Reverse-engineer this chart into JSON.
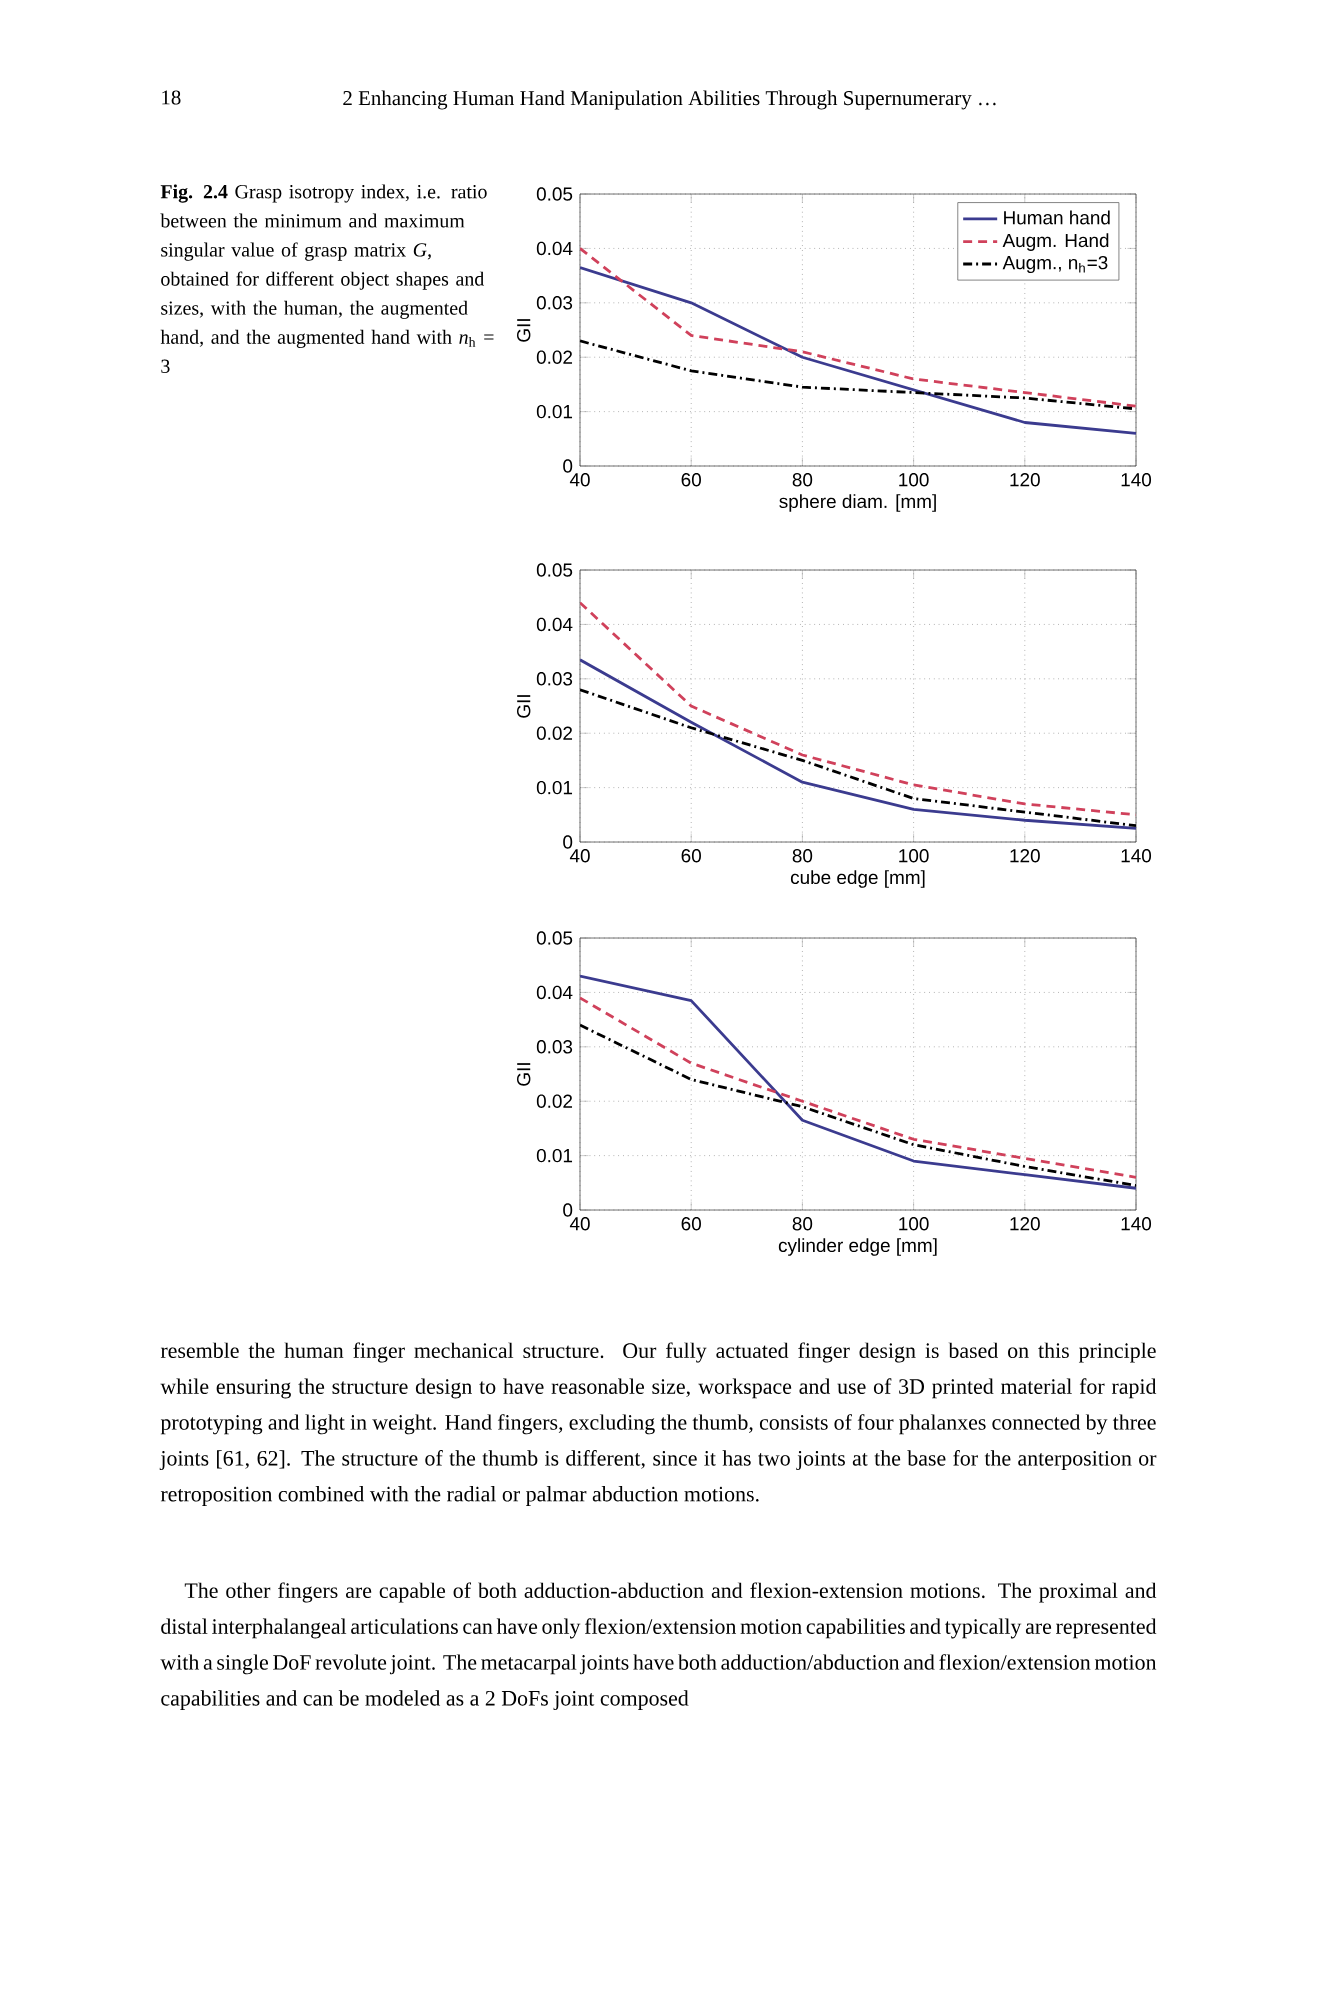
{
  "chart_data": [
    {
      "type": "line",
      "xlabel": "sphere diam. [mm]",
      "ylabel": "GII",
      "x": [
        40,
        60,
        80,
        100,
        120,
        140
      ],
      "xlim": [
        40,
        140
      ],
      "ylim": [
        0,
        0.05
      ],
      "xticks": [
        40,
        60,
        80,
        100,
        120,
        140
      ],
      "yticks": [
        0,
        0.01,
        0.02,
        0.03,
        0.04,
        0.05
      ],
      "grid": true,
      "legend": "top right",
      "annotations": [
        "18",
        "2 Enhancing Human Hand Manipulation Abilities Through Supernumerary …",
        "**Fig. 2.4** Grasp isotropy index, i.e. ratio between the minimum and maximum singular value of grasp matrix *G*, obtained for different object shapes and sizes, with the human, the augmented hand, and the augmented hand with *n*$_{h}$ = 3"
      ],
      "series": [
        {
          "name": "Human hand",
          "color": "#3b3b8f",
          "line_style": "solid",
          "values": [
            0.0365,
            0.03,
            0.02,
            0.014,
            0.008,
            0.006
          ]
        },
        {
          "name": "Augm. Hand",
          "color": "#d0415b",
          "line_style": "dashed",
          "values": [
            0.04,
            0.024,
            0.021,
            0.016,
            0.0135,
            0.011
          ]
        },
        {
          "name": "Augm., n$_{h}$=3",
          "color": "#000000",
          "line_style": "dashdot",
          "values": [
            0.023,
            0.0175,
            0.0145,
            0.0135,
            0.0125,
            0.0105
          ]
        }
      ]
    },
    {
      "type": "line",
      "xlabel": "cube edge [mm]",
      "ylabel": "GII",
      "x": [
        40,
        60,
        80,
        100,
        120,
        140
      ],
      "xlim": [
        40,
        140
      ],
      "ylim": [
        0,
        0.05
      ],
      "xticks": [
        40,
        60,
        80,
        100,
        120,
        140
      ],
      "yticks": [
        0,
        0.01,
        0.02,
        0.03,
        0.04,
        0.05
      ],
      "grid": true,
      "series": [
        {
          "color": "#3b3b8f",
          "line_style": "solid",
          "values": [
            0.0335,
            0.022,
            0.011,
            0.006,
            0.004,
            0.0025
          ]
        },
        {
          "color": "#d0415b",
          "line_style": "dashed",
          "values": [
            0.044,
            0.025,
            0.016,
            0.0105,
            0.007,
            0.005
          ]
        },
        {
          "color": "#000000",
          "line_style": "dashdot",
          "values": [
            0.028,
            0.021,
            0.015,
            0.008,
            0.0055,
            0.003
          ]
        }
      ]
    },
    {
      "type": "line",
      "xlabel": "cylinder edge [mm]",
      "ylabel": "GII",
      "x": [
        40,
        60,
        80,
        100,
        120,
        140
      ],
      "xlim": [
        40,
        140
      ],
      "ylim": [
        0,
        0.05
      ],
      "xticks": [
        40,
        60,
        80,
        100,
        120,
        140
      ],
      "yticks": [
        0,
        0.01,
        0.02,
        0.03,
        0.04,
        0.05
      ],
      "grid": true,
      "annotations": [
        "resemble the human finger mechanical structure. Our fully actuated finger design is based on this principle while ensuring the structure design to have reasonable size, workspace and use of 3D printed material for rapid prototyping and light in weight. Hand fingers, excluding the thumb, consists of four phalanxes connected by three joints [61, 62]. The structure of the thumb is different, since it has two joints at the base for the anterposition or retroposition combined with the radial or palmar abduction motions.",
        "The other fingers are capable of both adduction-abduction and flexion-extension motions. The proximal and distal interphalangeal articulations can have only flexion/extension motion capabilities and typically are represented with a single DoF revolute joint. The metacarpal joints have both adduction/abduction and flexion/extension motion capabilities and can be modeled as a 2 DoFs joint composed"
      ],
      "series": [
        {
          "color": "#3b3b8f",
          "line_style": "solid",
          "values": [
            0.043,
            0.0385,
            0.0165,
            0.009,
            0.0065,
            0.004
          ]
        },
        {
          "color": "#d0415b",
          "line_style": "dashed",
          "values": [
            0.039,
            0.027,
            0.02,
            0.013,
            0.0095,
            0.006
          ]
        },
        {
          "color": "#000000",
          "line_style": "dashdot",
          "values": [
            0.034,
            0.024,
            0.019,
            0.012,
            0.008,
            0.0045
          ]
        }
      ]
    }
  ]
}
